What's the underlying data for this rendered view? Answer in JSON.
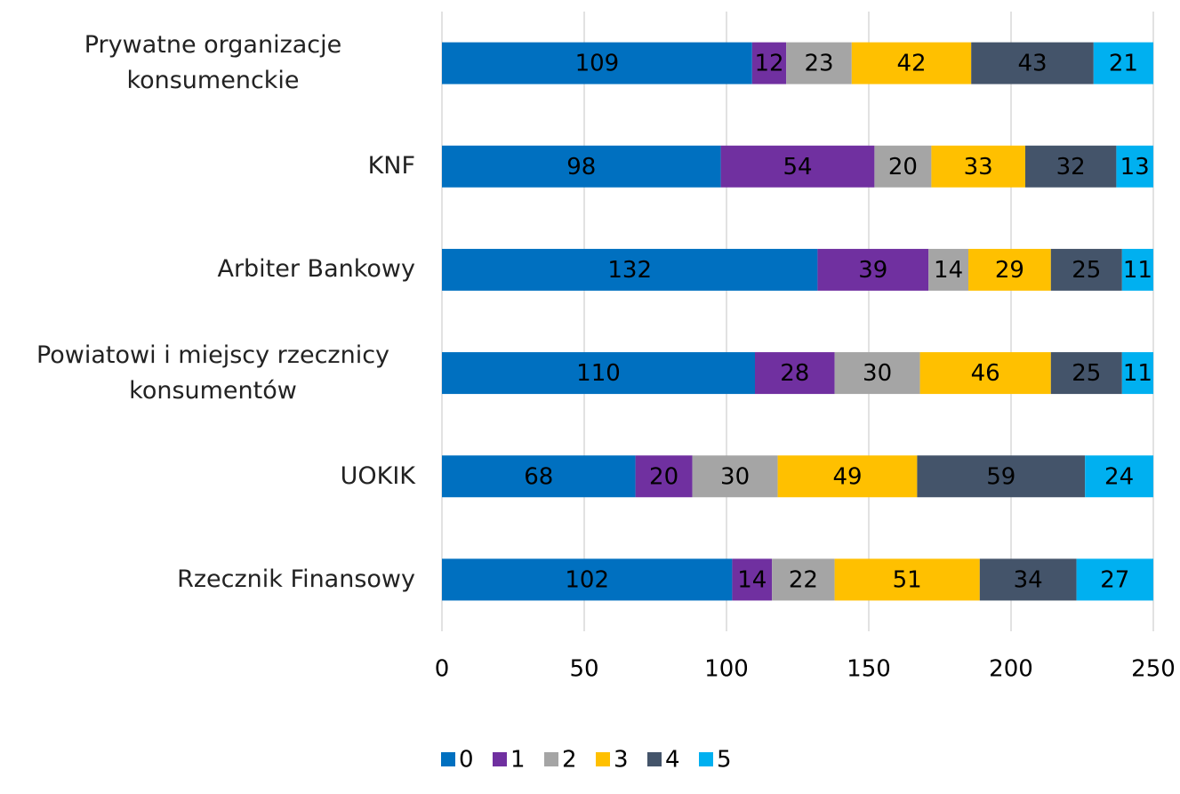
{
  "chart_data": {
    "type": "stacked-bar-horizontal",
    "categories": [
      "Prywatne organizacje konsumenckie",
      "KNF",
      "Arbiter Bankowy",
      "Powiatowi i miejscy rzecznicy konsumentów",
      "UOKIK",
      "Rzecznik Finansowy"
    ],
    "series": [
      {
        "name": "0",
        "color": "#0070c0",
        "values": [
          109,
          98,
          132,
          110,
          68,
          102
        ]
      },
      {
        "name": "1",
        "color": "#7030a0",
        "values": [
          12,
          54,
          39,
          28,
          20,
          14
        ]
      },
      {
        "name": "2",
        "color": "#a5a5a5",
        "values": [
          23,
          20,
          14,
          30,
          30,
          22
        ]
      },
      {
        "name": "3",
        "color": "#ffc000",
        "values": [
          42,
          33,
          29,
          46,
          49,
          51
        ]
      },
      {
        "name": "4",
        "color": "#44546a",
        "values": [
          43,
          32,
          25,
          25,
          59,
          34
        ]
      },
      {
        "name": "5",
        "color": "#00b0f0",
        "values": [
          21,
          13,
          11,
          11,
          24,
          27
        ]
      }
    ],
    "xlim": [
      0,
      250
    ],
    "xticks": [
      0,
      50,
      100,
      150,
      200,
      250
    ],
    "grid": true,
    "legend": "bottom"
  }
}
